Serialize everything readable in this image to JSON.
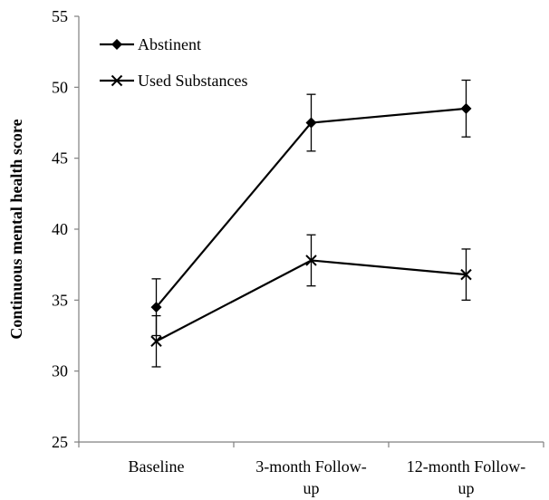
{
  "chart_data": {
    "type": "line",
    "categories": [
      [
        "Baseline"
      ],
      [
        "3-month Follow-",
        "up"
      ],
      [
        "12-month Follow-",
        "up"
      ]
    ],
    "xlabel": "",
    "ylabel": "Continuous mental health score",
    "ylim": [
      25,
      55
    ],
    "yticks": [
      25,
      30,
      35,
      40,
      45,
      50,
      55
    ],
    "grid": false,
    "legend_position": "top-left",
    "series": [
      {
        "name": "Abstinent",
        "marker": "diamond",
        "values": [
          34.5,
          47.5,
          48.5
        ],
        "errors": [
          2.0,
          2.0,
          2.0
        ]
      },
      {
        "name": "Used Substances",
        "marker": "x",
        "values": [
          32.1,
          37.8,
          36.8
        ],
        "errors": [
          1.8,
          1.8,
          1.8
        ]
      }
    ],
    "colors": {
      "line": "#000000",
      "axis": "#808080"
    }
  }
}
